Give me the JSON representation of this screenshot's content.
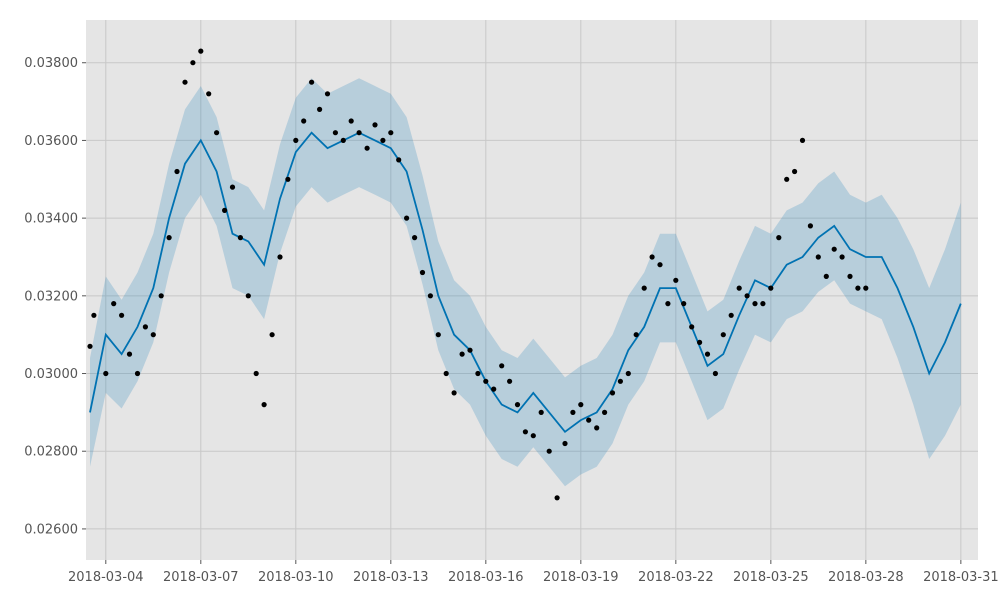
{
  "chart_data": {
    "type": "line",
    "title": "",
    "xlabel": "",
    "ylabel": "",
    "grid": true,
    "xlim": [
      "2018-03-03 09:00",
      "2018-03-31 13:00"
    ],
    "ylim": [
      0.0252,
      0.0391
    ],
    "x_ticks": [
      {
        "value": "2018-03-04",
        "label": "2018-03-04"
      },
      {
        "value": "2018-03-07",
        "label": "2018-03-07"
      },
      {
        "value": "2018-03-10",
        "label": "2018-03-10"
      },
      {
        "value": "2018-03-13",
        "label": "2018-03-13"
      },
      {
        "value": "2018-03-16",
        "label": "2018-03-16"
      },
      {
        "value": "2018-03-19",
        "label": "2018-03-19"
      },
      {
        "value": "2018-03-22",
        "label": "2018-03-22"
      },
      {
        "value": "2018-03-25",
        "label": "2018-03-25"
      },
      {
        "value": "2018-03-28",
        "label": "2018-03-28"
      },
      {
        "value": "2018-03-31",
        "label": "2018-03-31"
      }
    ],
    "y_ticks": [
      {
        "value": 0.026,
        "label": "0.02600"
      },
      {
        "value": 0.028,
        "label": "0.02800"
      },
      {
        "value": 0.03,
        "label": "0.03000"
      },
      {
        "value": 0.032,
        "label": "0.03200"
      },
      {
        "value": 0.034,
        "label": "0.03400"
      },
      {
        "value": 0.036,
        "label": "0.03600"
      },
      {
        "value": 0.038,
        "label": "0.03800"
      }
    ],
    "colors": {
      "forecast_line": "#0072B2",
      "uncertainty_band": "#0072B2",
      "observations": "#000000",
      "plot_background": "#e5e5e5",
      "grid": "#c8c8c8"
    },
    "series": [
      {
        "type": "line",
        "x": [
          "2018-03-03 12:00",
          "2018-03-04 00:00",
          "2018-03-04 12:00",
          "2018-03-05 00:00",
          "2018-03-05 12:00",
          "2018-03-06 00:00",
          "2018-03-06 12:00",
          "2018-03-07 00:00",
          "2018-03-07 12:00",
          "2018-03-08 00:00",
          "2018-03-08 12:00",
          "2018-03-09 00:00",
          "2018-03-09 12:00",
          "2018-03-10 00:00",
          "2018-03-10 12:00",
          "2018-03-11 00:00",
          "2018-03-11 12:00",
          "2018-03-12 00:00",
          "2018-03-12 12:00",
          "2018-03-13 00:00",
          "2018-03-13 12:00",
          "2018-03-14 00:00",
          "2018-03-14 12:00",
          "2018-03-15 00:00",
          "2018-03-15 12:00",
          "2018-03-16 00:00",
          "2018-03-16 12:00",
          "2018-03-17 00:00",
          "2018-03-17 12:00",
          "2018-03-18 00:00",
          "2018-03-18 12:00",
          "2018-03-19 00:00",
          "2018-03-19 12:00",
          "2018-03-20 00:00",
          "2018-03-20 12:00",
          "2018-03-21 00:00",
          "2018-03-21 12:00",
          "2018-03-22 00:00",
          "2018-03-22 12:00",
          "2018-03-23 00:00",
          "2018-03-23 12:00",
          "2018-03-24 00:00",
          "2018-03-24 12:00",
          "2018-03-25 00:00",
          "2018-03-25 12:00",
          "2018-03-26 00:00",
          "2018-03-26 12:00",
          "2018-03-27 00:00",
          "2018-03-27 12:00",
          "2018-03-28 00:00",
          "2018-03-28 12:00",
          "2018-03-29 00:00",
          "2018-03-29 12:00",
          "2018-03-30 00:00",
          "2018-03-30 12:00",
          "2018-03-31 00:00"
        ],
        "values": [
          0.029,
          0.031,
          0.0305,
          0.0312,
          0.0322,
          0.034,
          0.0354,
          0.036,
          0.0352,
          0.0336,
          0.0334,
          0.0328,
          0.0345,
          0.0357,
          0.0362,
          0.0358,
          0.036,
          0.0362,
          0.036,
          0.0358,
          0.0352,
          0.0337,
          0.032,
          0.031,
          0.0306,
          0.0298,
          0.0292,
          0.029,
          0.0295,
          0.029,
          0.0285,
          0.0288,
          0.029,
          0.0296,
          0.0306,
          0.0312,
          0.0322,
          0.0322,
          0.0312,
          0.0302,
          0.0305,
          0.0315,
          0.0324,
          0.0322,
          0.0328,
          0.033,
          0.0335,
          0.0338,
          0.0332,
          0.033,
          0.033,
          0.0322,
          0.0312,
          0.03,
          0.0308,
          0.0318
        ]
      },
      {
        "type": "band",
        "x": [
          "2018-03-03 12:00",
          "2018-03-04 00:00",
          "2018-03-04 12:00",
          "2018-03-05 00:00",
          "2018-03-05 12:00",
          "2018-03-06 00:00",
          "2018-03-06 12:00",
          "2018-03-07 00:00",
          "2018-03-07 12:00",
          "2018-03-08 00:00",
          "2018-03-08 12:00",
          "2018-03-09 00:00",
          "2018-03-09 12:00",
          "2018-03-10 00:00",
          "2018-03-10 12:00",
          "2018-03-11 00:00",
          "2018-03-11 12:00",
          "2018-03-12 00:00",
          "2018-03-12 12:00",
          "2018-03-13 00:00",
          "2018-03-13 12:00",
          "2018-03-14 00:00",
          "2018-03-14 12:00",
          "2018-03-15 00:00",
          "2018-03-15 12:00",
          "2018-03-16 00:00",
          "2018-03-16 12:00",
          "2018-03-17 00:00",
          "2018-03-17 12:00",
          "2018-03-18 00:00",
          "2018-03-18 12:00",
          "2018-03-19 00:00",
          "2018-03-19 12:00",
          "2018-03-20 00:00",
          "2018-03-20 12:00",
          "2018-03-21 00:00",
          "2018-03-21 12:00",
          "2018-03-22 00:00",
          "2018-03-22 12:00",
          "2018-03-23 00:00",
          "2018-03-23 12:00",
          "2018-03-24 00:00",
          "2018-03-24 12:00",
          "2018-03-25 00:00",
          "2018-03-25 12:00",
          "2018-03-26 00:00",
          "2018-03-26 12:00",
          "2018-03-27 00:00",
          "2018-03-27 12:00",
          "2018-03-28 00:00",
          "2018-03-28 12:00",
          "2018-03-29 00:00",
          "2018-03-29 12:00",
          "2018-03-30 00:00",
          "2018-03-30 12:00",
          "2018-03-31 00:00"
        ],
        "lower": [
          0.0276,
          0.0295,
          0.0291,
          0.0298,
          0.0308,
          0.0326,
          0.034,
          0.0346,
          0.0338,
          0.0322,
          0.032,
          0.0314,
          0.0331,
          0.0343,
          0.0348,
          0.0344,
          0.0346,
          0.0348,
          0.0346,
          0.0344,
          0.0338,
          0.0323,
          0.0306,
          0.0296,
          0.0292,
          0.0284,
          0.0278,
          0.0276,
          0.0281,
          0.0276,
          0.0271,
          0.0274,
          0.0276,
          0.0282,
          0.0292,
          0.0298,
          0.0308,
          0.0308,
          0.0298,
          0.0288,
          0.0291,
          0.0301,
          0.031,
          0.0308,
          0.0314,
          0.0316,
          0.0321,
          0.0324,
          0.0318,
          0.0316,
          0.0314,
          0.0304,
          0.0292,
          0.0278,
          0.0284,
          0.0292
        ],
        "upper": [
          0.0304,
          0.0325,
          0.0319,
          0.0326,
          0.0336,
          0.0354,
          0.0368,
          0.0374,
          0.0366,
          0.035,
          0.0348,
          0.0342,
          0.0359,
          0.0371,
          0.0376,
          0.0372,
          0.0374,
          0.0376,
          0.0374,
          0.0372,
          0.0366,
          0.0351,
          0.0334,
          0.0324,
          0.032,
          0.0312,
          0.0306,
          0.0304,
          0.0309,
          0.0304,
          0.0299,
          0.0302,
          0.0304,
          0.031,
          0.032,
          0.0326,
          0.0336,
          0.0336,
          0.0326,
          0.0316,
          0.0319,
          0.0329,
          0.0338,
          0.0336,
          0.0342,
          0.0344,
          0.0349,
          0.0352,
          0.0346,
          0.0344,
          0.0346,
          0.034,
          0.0332,
          0.0322,
          0.0332,
          0.0344
        ]
      },
      {
        "type": "scatter",
        "x": [
          "2018-03-03 12:00",
          "2018-03-03 15:00",
          "2018-03-04 00:00",
          "2018-03-04 06:00",
          "2018-03-04 12:00",
          "2018-03-04 18:00",
          "2018-03-05 00:00",
          "2018-03-05 06:00",
          "2018-03-05 12:00",
          "2018-03-05 18:00",
          "2018-03-06 00:00",
          "2018-03-06 06:00",
          "2018-03-06 12:00",
          "2018-03-06 18:00",
          "2018-03-07 00:00",
          "2018-03-07 06:00",
          "2018-03-07 12:00",
          "2018-03-07 18:00",
          "2018-03-08 00:00",
          "2018-03-08 06:00",
          "2018-03-08 12:00",
          "2018-03-08 18:00",
          "2018-03-09 00:00",
          "2018-03-09 06:00",
          "2018-03-09 12:00",
          "2018-03-09 18:00",
          "2018-03-10 00:00",
          "2018-03-10 06:00",
          "2018-03-10 12:00",
          "2018-03-10 18:00",
          "2018-03-11 00:00",
          "2018-03-11 06:00",
          "2018-03-11 12:00",
          "2018-03-11 18:00",
          "2018-03-12 00:00",
          "2018-03-12 06:00",
          "2018-03-12 12:00",
          "2018-03-12 18:00",
          "2018-03-13 00:00",
          "2018-03-13 06:00",
          "2018-03-13 12:00",
          "2018-03-13 18:00",
          "2018-03-14 00:00",
          "2018-03-14 06:00",
          "2018-03-14 12:00",
          "2018-03-14 18:00",
          "2018-03-15 00:00",
          "2018-03-15 06:00",
          "2018-03-15 12:00",
          "2018-03-15 18:00",
          "2018-03-16 00:00",
          "2018-03-16 06:00",
          "2018-03-16 12:00",
          "2018-03-16 18:00",
          "2018-03-17 00:00",
          "2018-03-17 06:00",
          "2018-03-17 12:00",
          "2018-03-17 18:00",
          "2018-03-18 00:00",
          "2018-03-18 06:00",
          "2018-03-18 12:00",
          "2018-03-18 18:00",
          "2018-03-19 00:00",
          "2018-03-19 06:00",
          "2018-03-19 12:00",
          "2018-03-19 18:00",
          "2018-03-20 00:00",
          "2018-03-20 06:00",
          "2018-03-20 12:00",
          "2018-03-20 18:00",
          "2018-03-21 00:00",
          "2018-03-21 06:00",
          "2018-03-21 12:00",
          "2018-03-21 18:00",
          "2018-03-22 00:00",
          "2018-03-22 06:00",
          "2018-03-22 12:00",
          "2018-03-22 18:00",
          "2018-03-23 00:00",
          "2018-03-23 06:00",
          "2018-03-23 12:00",
          "2018-03-23 18:00",
          "2018-03-24 00:00",
          "2018-03-24 06:00",
          "2018-03-24 12:00",
          "2018-03-24 18:00",
          "2018-03-25 00:00",
          "2018-03-25 06:00",
          "2018-03-25 12:00",
          "2018-03-25 18:00",
          "2018-03-26 00:00",
          "2018-03-26 06:00",
          "2018-03-26 12:00",
          "2018-03-26 18:00",
          "2018-03-27 00:00",
          "2018-03-27 06:00",
          "2018-03-27 12:00",
          "2018-03-27 18:00",
          "2018-03-28 00:00"
        ],
        "values": [
          0.0307,
          0.0315,
          0.03,
          0.0318,
          0.0315,
          0.0305,
          0.03,
          0.0312,
          0.031,
          0.032,
          0.0335,
          0.0352,
          0.0375,
          0.038,
          0.0383,
          0.0372,
          0.0362,
          0.0342,
          0.0348,
          0.0335,
          0.032,
          0.03,
          0.0292,
          0.031,
          0.033,
          0.035,
          0.036,
          0.0365,
          0.0375,
          0.0368,
          0.0372,
          0.0362,
          0.036,
          0.0365,
          0.0362,
          0.0358,
          0.0364,
          0.036,
          0.0362,
          0.0355,
          0.034,
          0.0335,
          0.0326,
          0.032,
          0.031,
          0.03,
          0.0295,
          0.0305,
          0.0306,
          0.03,
          0.0298,
          0.0296,
          0.0302,
          0.0298,
          0.0292,
          0.0285,
          0.0284,
          0.029,
          0.028,
          0.0268,
          0.0282,
          0.029,
          0.0292,
          0.0288,
          0.0286,
          0.029,
          0.0295,
          0.0298,
          0.03,
          0.031,
          0.0322,
          0.033,
          0.0328,
          0.0318,
          0.0324,
          0.0318,
          0.0312,
          0.0308,
          0.0305,
          0.03,
          0.031,
          0.0315,
          0.0322,
          0.032,
          0.0318,
          0.0318,
          0.0322,
          0.0335,
          0.035,
          0.0352,
          0.036,
          0.0338,
          0.033,
          0.0325,
          0.0332,
          0.033,
          0.0325,
          0.0322,
          0.0322
        ]
      }
    ]
  }
}
